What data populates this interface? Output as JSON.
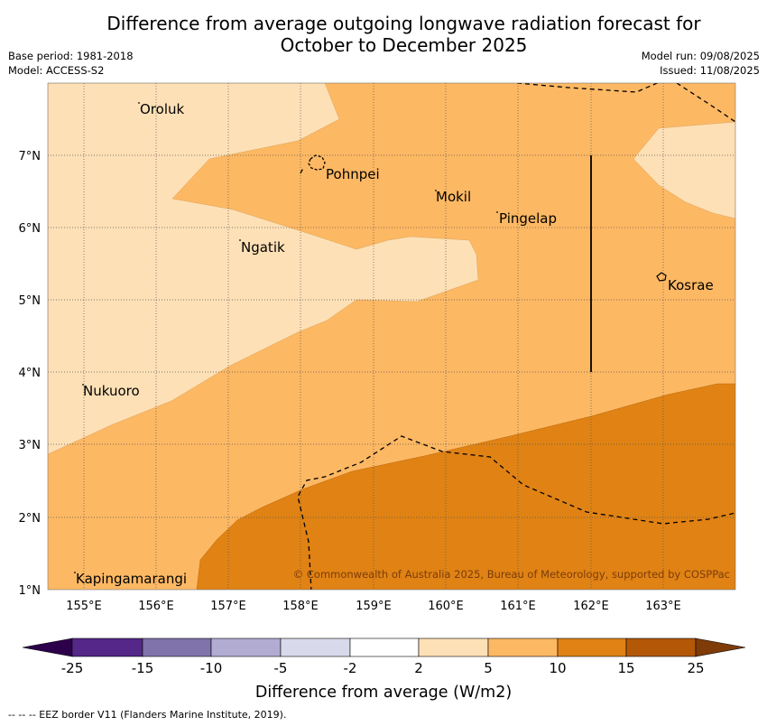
{
  "title_line1": "Difference from average outgoing longwave radiation forecast for",
  "title_line2": "October to December 2025",
  "base_period": "Base period: 1981-2018",
  "model": "Model: ACCESS-S2",
  "model_run": "Model run: 09/08/2025",
  "issued": "Issued: 11/08/2025",
  "lon_ticks": [
    "155°E",
    "156°E",
    "157°E",
    "158°E",
    "159°E",
    "160°E",
    "161°E",
    "162°E",
    "163°E"
  ],
  "lat_ticks": [
    "7°N",
    "6°N",
    "5°N",
    "4°N",
    "3°N",
    "2°N",
    "1°N"
  ],
  "places": [
    "Oroluk",
    "Pohnpei",
    "Mokil",
    "Pingelap",
    "Ngatik",
    "Kosrae",
    "Nukuoro",
    "Kapingamarangi"
  ],
  "copyright": "© Commonwealth of Australia 2025, Bureau of Meteorology, supported by COSPPac",
  "colorbar": {
    "ticks": [
      "-25",
      "-15",
      "-10",
      "-5",
      "-2",
      "2",
      "5",
      "10",
      "15",
      "25"
    ],
    "colors": [
      "#2d004b",
      "#542788",
      "#8073ac",
      "#b2abd2",
      "#d8daeb",
      "#ffffff",
      "#fee0b6",
      "#fdb863",
      "#e08214",
      "#b35806",
      "#7f3b08"
    ],
    "label": "Difference from average (W/m2)"
  },
  "footnote": "--  --  -- EEZ border V11 (Flanders Marine Institute, 2019)."
}
